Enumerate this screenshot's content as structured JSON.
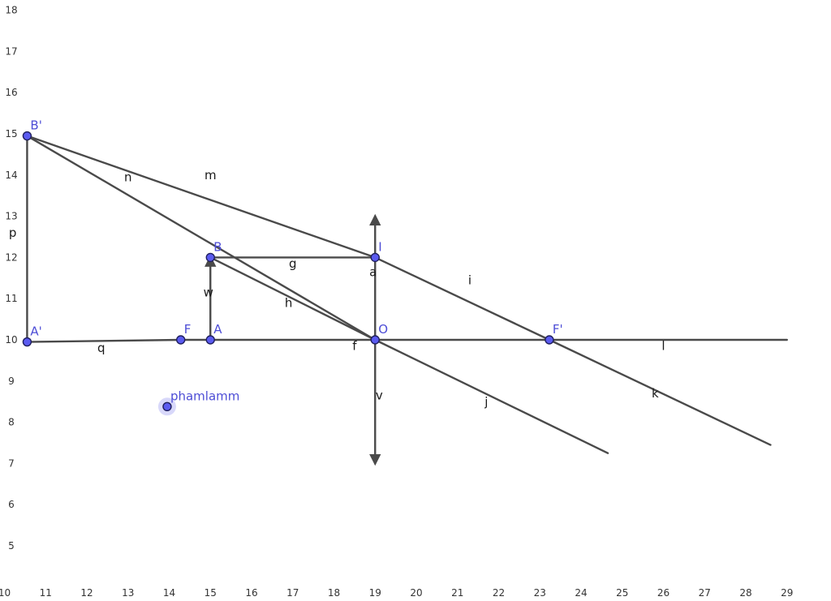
{
  "axes": {
    "x_ticks": [
      "10",
      "11",
      "12",
      "13",
      "14",
      "15",
      "16",
      "17",
      "18",
      "19",
      "20",
      "21",
      "22",
      "23",
      "24",
      "25",
      "26",
      "27",
      "28",
      "29"
    ],
    "y_ticks": [
      "5",
      "6",
      "7",
      "8",
      "9",
      "10",
      "11",
      "12",
      "13",
      "14",
      "15",
      "16",
      "17",
      "18"
    ]
  },
  "colors": {
    "line": "#4a4a4a",
    "point_fill": "#5b5bf0",
    "point_stroke": "#1f1f5e",
    "point_label": "#4d4dd6",
    "segment_label": "#1a1a1a"
  },
  "points": [
    {
      "name": "B'",
      "x": 10.55,
      "y": 14.95
    },
    {
      "name": "A'",
      "x": 10.55,
      "y": 9.95
    },
    {
      "name": "F",
      "x": 14.28,
      "y": 10
    },
    {
      "name": "A",
      "x": 15,
      "y": 10
    },
    {
      "name": "B",
      "x": 15,
      "y": 12
    },
    {
      "name": "I",
      "x": 19,
      "y": 12
    },
    {
      "name": "O",
      "x": 19,
      "y": 10
    },
    {
      "name": "F'",
      "x": 23.23,
      "y": 10
    },
    {
      "name": "phamlamm",
      "x": 13.95,
      "y": 8.38,
      "highlight": true
    }
  ],
  "segments": [
    {
      "name": "p",
      "from": [
        10.55,
        14.95
      ],
      "to": [
        10.55,
        9.95
      ],
      "label_at": [
        10.2,
        12.5
      ]
    },
    {
      "name": "n",
      "from": [
        10.55,
        14.95
      ],
      "to": [
        19,
        10
      ],
      "label_at": [
        13,
        13.85
      ]
    },
    {
      "name": "m",
      "from": [
        10.55,
        14.95
      ],
      "to": [
        19,
        12
      ],
      "label_at": [
        15,
        13.9
      ]
    },
    {
      "name": "g",
      "from": [
        15,
        12
      ],
      "to": [
        19,
        12
      ],
      "label_at": [
        17,
        11.75
      ]
    },
    {
      "name": "h",
      "from": [
        15,
        12
      ],
      "to": [
        19,
        10
      ],
      "label_at": [
        16.9,
        10.8
      ]
    },
    {
      "name": "q",
      "from": [
        10.55,
        9.95
      ],
      "to": [
        14.28,
        10
      ],
      "label_at": [
        12.35,
        9.7
      ]
    },
    {
      "name": "f",
      "from": [
        14.28,
        10
      ],
      "to": [
        19,
        10
      ],
      "label_at": [
        18.5,
        9.75
      ]
    },
    {
      "name": "l",
      "from": [
        19,
        10
      ],
      "to": [
        29,
        10
      ],
      "label_at": [
        26,
        9.75
      ]
    },
    {
      "name": "i",
      "from": [
        19,
        12
      ],
      "to": [
        23.23,
        10
      ],
      "label_at": [
        21.3,
        11.35
      ]
    },
    {
      "name": "k",
      "from": [
        23.23,
        10
      ],
      "to": [
        28.6,
        7.45
      ],
      "label_at": [
        25.8,
        8.6
      ]
    },
    {
      "name": "j",
      "from": [
        19,
        10
      ],
      "to": [
        24.65,
        7.25
      ],
      "label_at": [
        21.7,
        8.4
      ]
    },
    {
      "name": "a",
      "from": [
        19,
        10
      ],
      "to": [
        19,
        12
      ],
      "label_at": [
        18.95,
        11.55
      ]
    },
    {
      "name": "v",
      "from": [
        19,
        10
      ],
      "to": [
        19,
        7
      ],
      "label_at": [
        19.1,
        8.55
      ],
      "arrow": "end"
    },
    {
      "name": "",
      "from": [
        19,
        12
      ],
      "to": [
        19,
        13
      ],
      "arrow": "end"
    },
    {
      "name": "w",
      "from": [
        15,
        10
      ],
      "to": [
        15,
        12
      ],
      "label_at": [
        14.95,
        11.05
      ],
      "arrow": "end"
    }
  ]
}
